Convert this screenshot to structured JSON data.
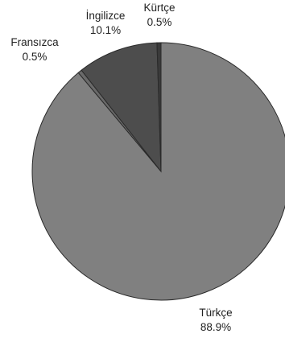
{
  "chart_data": {
    "type": "pie",
    "slices": [
      {
        "label": "Türkçe",
        "value": 88.9,
        "value_text": "88.9%",
        "color": "#808080"
      },
      {
        "label": "Fransızca",
        "value": 0.5,
        "value_text": "0.5%",
        "color": "#6a6a6a"
      },
      {
        "label": "İngilizce",
        "value": 10.1,
        "value_text": "10.1%",
        "color": "#4d4d4d"
      },
      {
        "label": "Kürtçe",
        "value": 0.5,
        "value_text": "0.5%",
        "color": "#3a3a3a"
      }
    ],
    "start_angle_deg": 0,
    "direction": "clockwise",
    "legend": "none",
    "title": ""
  }
}
